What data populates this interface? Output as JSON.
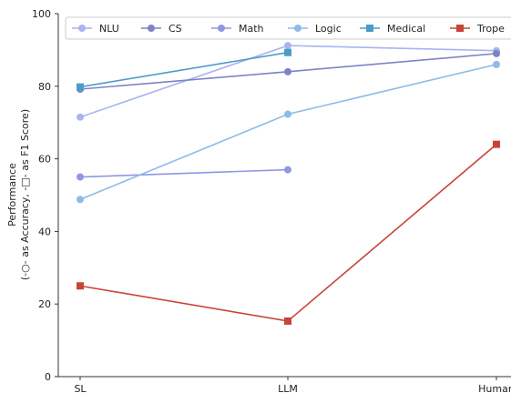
{
  "chart_data": {
    "type": "line",
    "x": [
      "SL",
      "LLM",
      "Human"
    ],
    "ylabel_line1": "Performance",
    "ylabel_line2": "(-○- as Accuracy, -□- as F1 Score)",
    "ylim": [
      0,
      100
    ],
    "yticks": [
      "0",
      "20",
      "40",
      "60",
      "80",
      "100"
    ],
    "grid": false,
    "legend_position": "top",
    "series": [
      {
        "name": "NLU",
        "color": "#a9b4f0",
        "marker": "circle",
        "values": [
          71.5,
          91.2,
          89.8
        ]
      },
      {
        "name": "CS",
        "color": "#7d83c6",
        "marker": "circle",
        "values": [
          79.2,
          84.0,
          89.0
        ]
      },
      {
        "name": "Math",
        "color": "#8f97e3",
        "marker": "circle",
        "values": [
          55.0,
          57.0,
          null
        ]
      },
      {
        "name": "Logic",
        "color": "#8ebbe8",
        "marker": "circle",
        "values": [
          48.8,
          72.3,
          86.0
        ]
      },
      {
        "name": "Medical",
        "color": "#4b9cc8",
        "marker": "square",
        "values": [
          79.8,
          89.3,
          null
        ]
      },
      {
        "name": "Trope",
        "color": "#c8443a",
        "marker": "square",
        "values": [
          25.0,
          15.3,
          64.0
        ]
      }
    ]
  }
}
